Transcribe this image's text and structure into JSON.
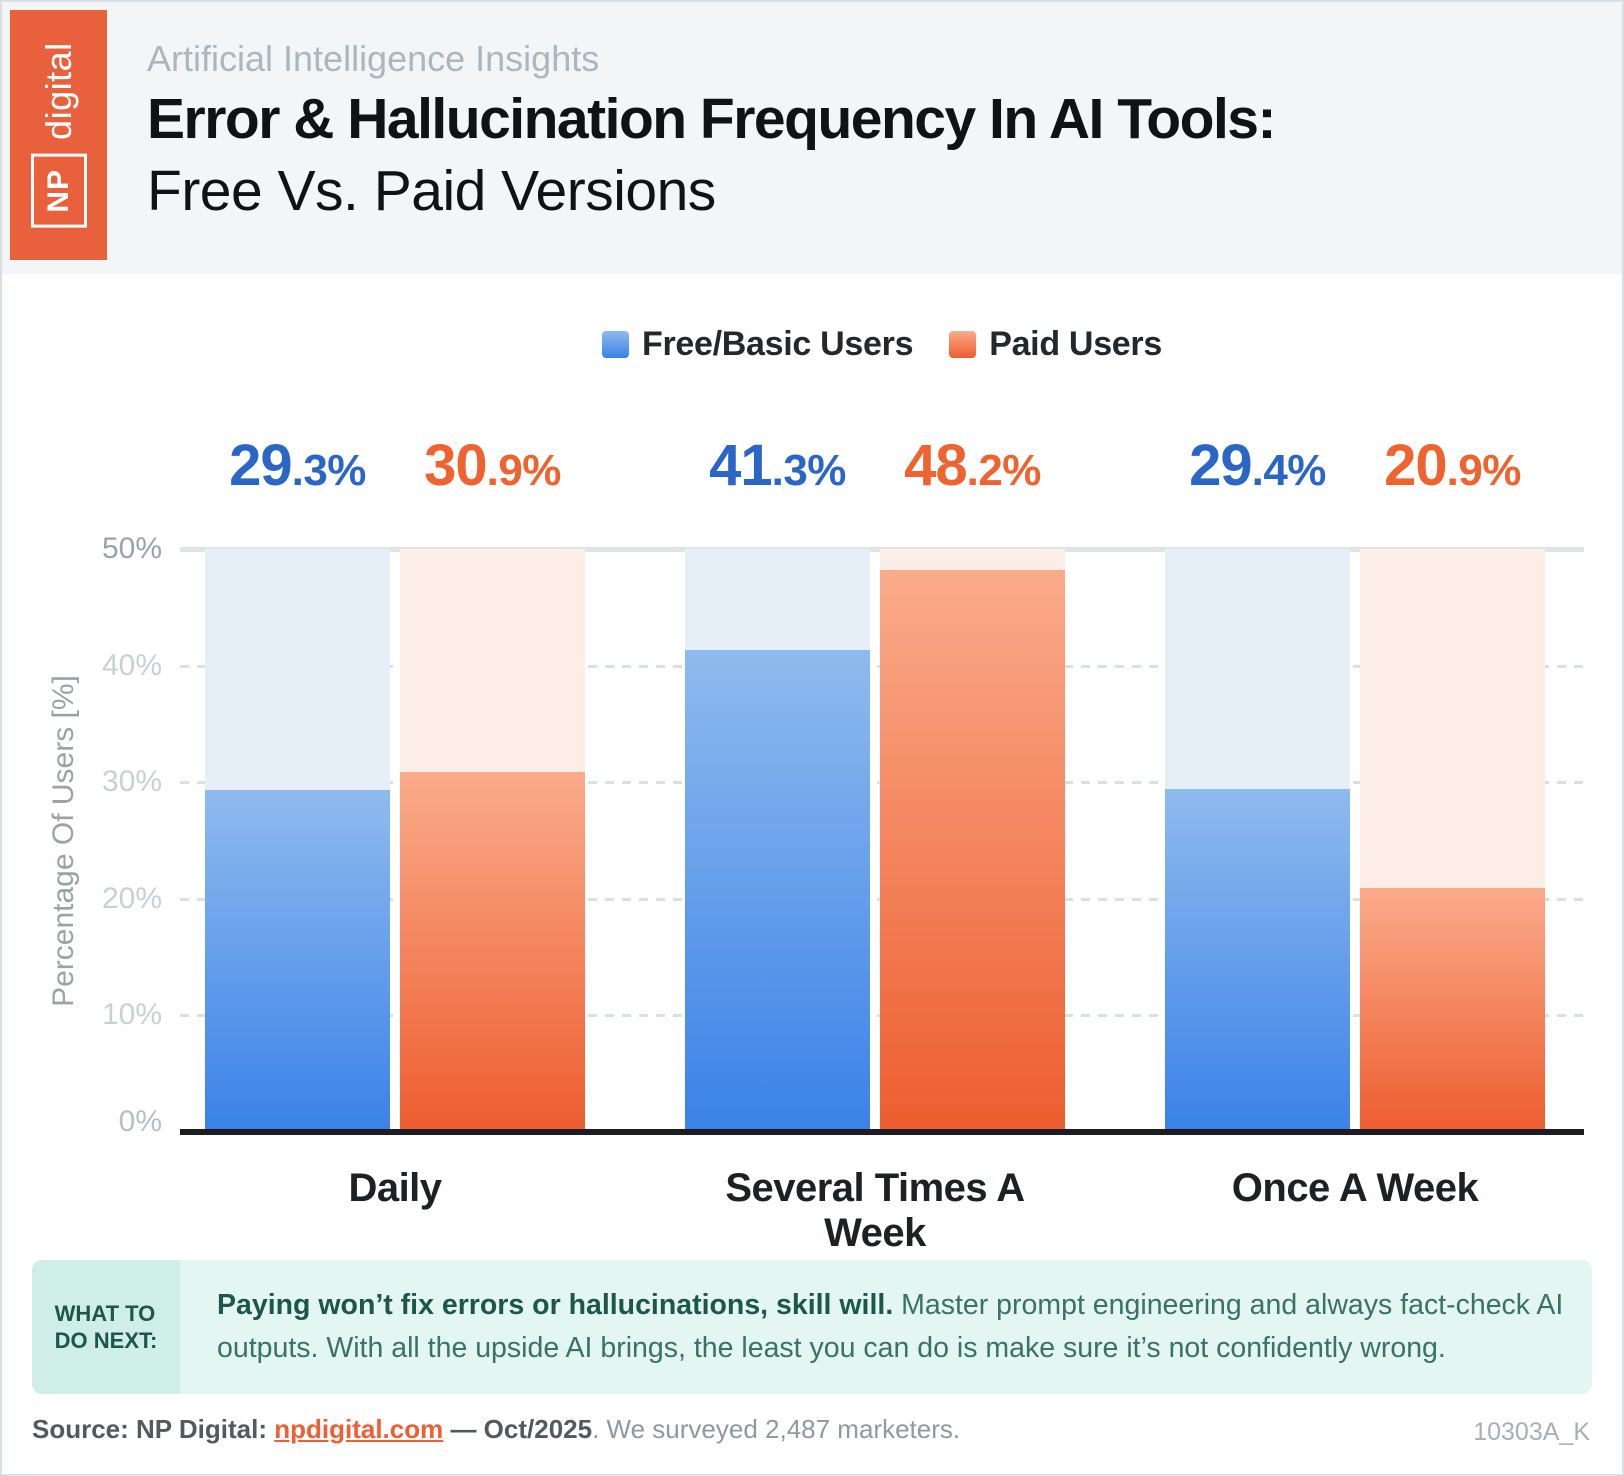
{
  "header": {
    "logo_np": "NP",
    "logo_word": "digital",
    "logo_color": "#e9603d",
    "eyebrow": "Artificial Intelligence Insights",
    "title_line1": "Error & Hallucination Frequency In AI Tools:",
    "title_line2": "Free Vs. Paid Versions"
  },
  "chart_data": {
    "type": "bar",
    "title": "Error & Hallucination Frequency In AI Tools: Free Vs. Paid Versions",
    "categories": [
      "Daily",
      "Several Times A Week",
      "Once A Week"
    ],
    "series": [
      {
        "name": "Free/Basic Users",
        "values": [
          29.3,
          41.3,
          29.4
        ],
        "color_top": "#8fbaee",
        "color_bottom": "#3a82e8",
        "track_color": "#e6eef8",
        "label_color": "#2b66c6"
      },
      {
        "name": "Paid Users",
        "values": [
          30.9,
          48.2,
          20.9
        ],
        "color_top": "#fbab8b",
        "color_bottom": "#ed5d2f",
        "track_color": "#fcede7",
        "label_color": "#ef6330"
      }
    ],
    "ylabel": "Percentage Of Users [%]",
    "ylim": [
      0,
      50
    ],
    "yticks": [
      {
        "value": 50,
        "label": "50%"
      },
      {
        "value": 40,
        "label": "40%"
      },
      {
        "value": 30,
        "label": "30%"
      },
      {
        "value": 20,
        "label": "20%"
      },
      {
        "value": 10,
        "label": "10%"
      },
      {
        "value": 0,
        "label": "0%"
      }
    ],
    "grid": "horizontal dashed, solid line at 50%",
    "legend_position": "top center"
  },
  "note": {
    "tag_line1": "WHAT TO",
    "tag_line2": "DO NEXT:",
    "bold": "Paying won’t fix errors or hallucinations, skill will.",
    "rest": " Master prompt engineering and always fact-check AI outputs. With all the upside AI brings, the least you can do is make sure it’s not confidently wrong."
  },
  "footer": {
    "source_prefix": "Source: NP Digital: ",
    "link": "npdigital.com",
    "date_segment": " — Oct/2025",
    "suffix": ". We surveyed 2,487 marketers.",
    "doc_id": "10303A_K"
  }
}
